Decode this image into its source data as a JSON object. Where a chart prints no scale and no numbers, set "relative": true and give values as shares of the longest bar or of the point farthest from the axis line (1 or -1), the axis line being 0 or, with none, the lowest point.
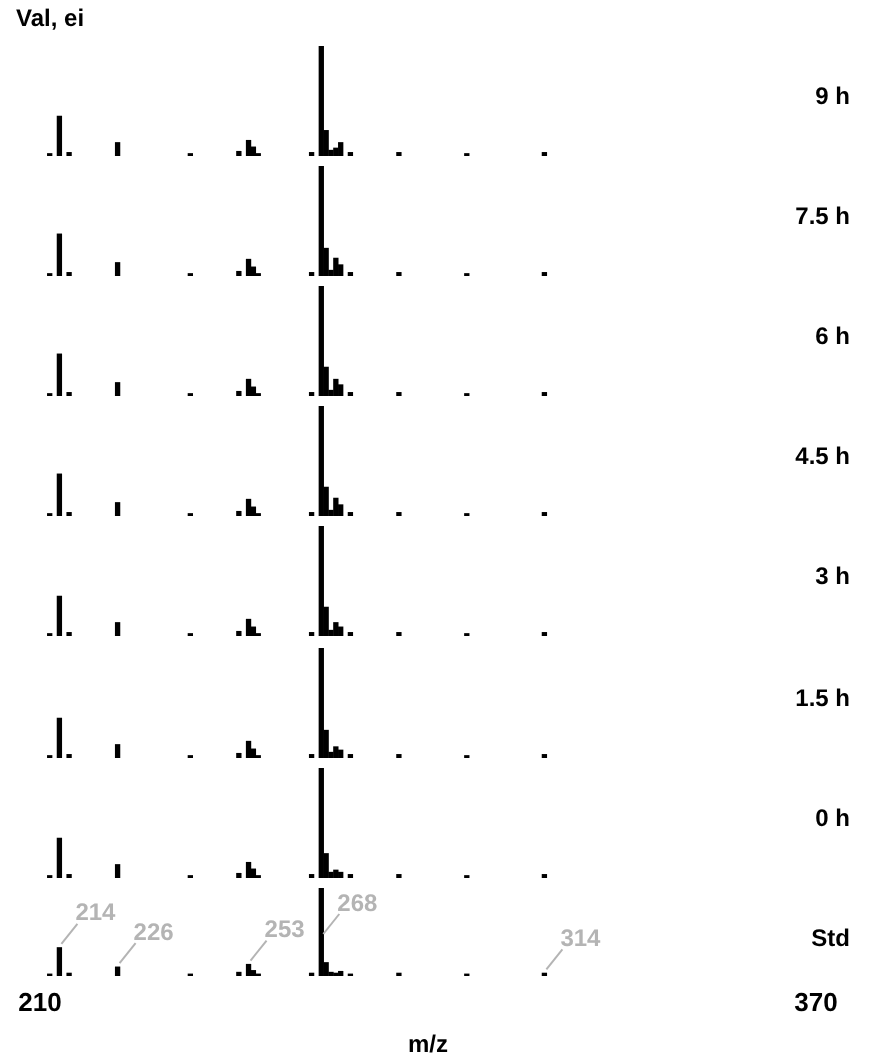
{
  "chart_data": [
    {
      "type": "bar",
      "title": "9 h",
      "ylabel": "Val, ei",
      "relative": true,
      "x": [
        212,
        214,
        216,
        226,
        241,
        251,
        253,
        254,
        255,
        266,
        268,
        269,
        270,
        271,
        272,
        274,
        284,
        298,
        314
      ],
      "xlim": [
        210,
        370
      ],
      "tick_labels": false,
      "color": "#000000",
      "values": [
        0.02,
        0.36,
        0.03,
        0.12,
        0.02,
        0.04,
        0.14,
        0.08,
        0.02,
        0.03,
        1,
        0.23,
        0.05,
        0.07,
        0.12,
        0.03,
        0.03,
        0.02,
        0.03
      ]
    },
    {
      "type": "bar",
      "title": "7.5 h",
      "relative": true,
      "x": [
        212,
        214,
        216,
        226,
        241,
        251,
        253,
        254,
        255,
        266,
        268,
        269,
        270,
        271,
        272,
        274,
        284,
        298,
        314
      ],
      "xlim": [
        210,
        370
      ],
      "tick_labels": false,
      "color": "#000000",
      "values": [
        0.02,
        0.38,
        0.03,
        0.12,
        0.02,
        0.04,
        0.15,
        0.08,
        0.02,
        0.03,
        1,
        0.25,
        0.05,
        0.16,
        0.1,
        0.03,
        0.03,
        0.02,
        0.03
      ]
    },
    {
      "type": "bar",
      "title": "6 h",
      "relative": true,
      "x": [
        212,
        214,
        216,
        226,
        241,
        251,
        253,
        254,
        255,
        266,
        268,
        269,
        270,
        271,
        272,
        274,
        284,
        298,
        314
      ],
      "xlim": [
        210,
        370
      ],
      "tick_labels": false,
      "color": "#000000",
      "values": [
        0.02,
        0.38,
        0.03,
        0.12,
        0.02,
        0.04,
        0.15,
        0.08,
        0.02,
        0.03,
        1,
        0.26,
        0.05,
        0.15,
        0.1,
        0.03,
        0.03,
        0.02,
        0.03
      ]
    },
    {
      "type": "bar",
      "title": "4.5 h",
      "relative": true,
      "x": [
        212,
        214,
        216,
        226,
        241,
        251,
        253,
        254,
        255,
        266,
        268,
        269,
        270,
        271,
        272,
        274,
        284,
        298,
        314
      ],
      "xlim": [
        210,
        370
      ],
      "tick_labels": false,
      "color": "#000000",
      "values": [
        0.02,
        0.38,
        0.03,
        0.12,
        0.02,
        0.04,
        0.15,
        0.08,
        0.02,
        0.03,
        1,
        0.26,
        0.05,
        0.16,
        0.1,
        0.03,
        0.03,
        0.02,
        0.03
      ]
    },
    {
      "type": "bar",
      "title": "3 h",
      "relative": true,
      "x": [
        212,
        214,
        216,
        226,
        241,
        251,
        253,
        254,
        255,
        266,
        268,
        269,
        270,
        271,
        272,
        274,
        284,
        298,
        314
      ],
      "xlim": [
        210,
        370
      ],
      "tick_labels": false,
      "color": "#000000",
      "values": [
        0.02,
        0.36,
        0.03,
        0.12,
        0.02,
        0.04,
        0.15,
        0.08,
        0.02,
        0.03,
        1,
        0.26,
        0.05,
        0.12,
        0.08,
        0.03,
        0.03,
        0.02,
        0.03
      ]
    },
    {
      "type": "bar",
      "title": "1.5 h",
      "relative": true,
      "x": [
        212,
        214,
        216,
        226,
        241,
        251,
        253,
        254,
        255,
        266,
        268,
        269,
        270,
        271,
        272,
        274,
        284,
        298,
        314
      ],
      "xlim": [
        210,
        370
      ],
      "tick_labels": false,
      "color": "#000000",
      "values": [
        0.02,
        0.36,
        0.03,
        0.12,
        0.02,
        0.04,
        0.15,
        0.08,
        0.02,
        0.03,
        1,
        0.25,
        0.05,
        0.1,
        0.07,
        0.03,
        0.03,
        0.02,
        0.03
      ]
    },
    {
      "type": "bar",
      "title": "0 h",
      "relative": true,
      "x": [
        212,
        214,
        216,
        226,
        241,
        251,
        253,
        254,
        255,
        266,
        268,
        269,
        270,
        271,
        272,
        274,
        284,
        298,
        314
      ],
      "xlim": [
        210,
        370
      ],
      "tick_labels": false,
      "color": "#000000",
      "values": [
        0.02,
        0.36,
        0.03,
        0.12,
        0.02,
        0.04,
        0.14,
        0.08,
        0.02,
        0.03,
        1,
        0.22,
        0.05,
        0.07,
        0.05,
        0.03,
        0.03,
        0.02,
        0.03
      ]
    },
    {
      "type": "bar",
      "title": "Std",
      "xlabel": "m/z",
      "relative": true,
      "x": [
        212,
        214,
        216,
        226,
        241,
        251,
        253,
        254,
        255,
        266,
        268,
        269,
        270,
        271,
        272,
        274,
        284,
        298,
        314
      ],
      "xlim": [
        210,
        370
      ],
      "xticks": [
        210,
        370
      ],
      "tick_labels": "x",
      "color": "#000000",
      "values": [
        0.02,
        0.32,
        0.03,
        0.1,
        0.02,
        0.04,
        0.13,
        0.06,
        0.02,
        0.03,
        1,
        0.15,
        0.04,
        0.03,
        0.05,
        0.02,
        0.03,
        0.02,
        0.03
      ],
      "annotations": [
        {
          "text": "214",
          "x": 214,
          "y": 0.32
        },
        {
          "text": "226",
          "x": 226,
          "y": 0.1
        },
        {
          "text": "253",
          "x": 253,
          "y": 0.13
        },
        {
          "text": "268",
          "x": 268,
          "y": 1
        },
        {
          "text": "314",
          "x": 314,
          "y": 0.03
        }
      ]
    }
  ]
}
